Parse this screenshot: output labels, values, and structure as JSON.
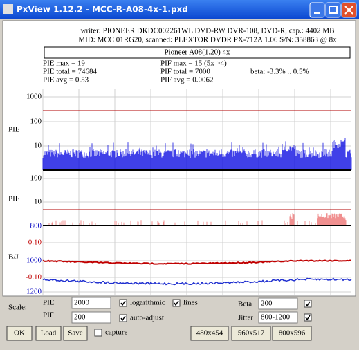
{
  "window": {
    "title": "PxView 1.12.2  -  MCC-R-A08-4x-1.pxd"
  },
  "header": {
    "writer": "writer: PIONEER DKDC002261WL DVD-RW DVR-108, DVD-R, cap.: 4402 MB",
    "mid": "MID: MCC 01RG20, scanned: PLEXTOR DVDR PX-712A 1.06 S/N: 358863 @ 8x",
    "drive": "Pioneer A08(1.20) 4x"
  },
  "stats": {
    "pie_max": "PIE max = 19",
    "pie_total": "PIE total = 74684",
    "pie_avg": "PIE avg = 0.53",
    "pif_max": "PIF max = 15 (5x >4)",
    "pif_total": "PIF total = 7000",
    "pif_avg": "PIF avg = 0.0062",
    "beta": "beta: -3.3% .. 0.5%"
  },
  "charts": {
    "pie": {
      "label": "PIE",
      "ticks": [
        "1000",
        "100",
        "10"
      ]
    },
    "pif": {
      "label": "PIF",
      "ticks": [
        "100",
        "10"
      ]
    },
    "bj": {
      "label": "B/J",
      "beta_ticks": [
        "0.10",
        "-0.10"
      ],
      "jitter_ticks": [
        "800",
        "1000",
        "1200"
      ]
    }
  },
  "controls": {
    "scale": "Scale:",
    "pie_label": "PIE",
    "pie_value": "2000",
    "logarithmic": "logarithmic",
    "lines": "lines",
    "pif_label": "PIF",
    "pif_value": "200",
    "auto_adjust": "auto-adjust",
    "beta_label": "Beta",
    "beta_value": "200",
    "jitter_label": "Jitter",
    "jitter_value": "800-1200",
    "ok": "OK",
    "load": "Load",
    "save": "Save",
    "capture": "capture",
    "size1": "480x454",
    "size2": "560x517",
    "size3": "800x596"
  }
}
